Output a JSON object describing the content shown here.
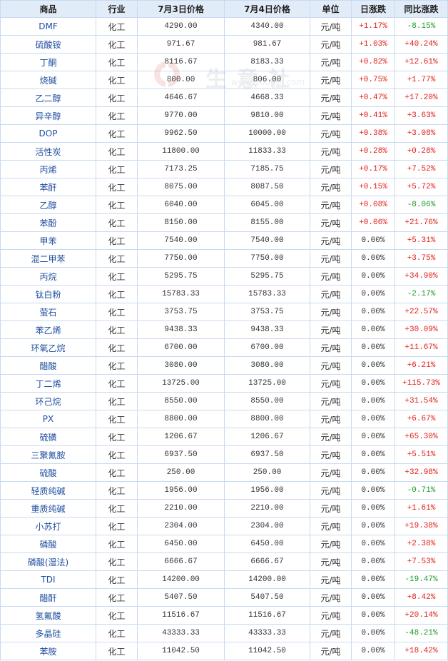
{
  "table": {
    "headers": {
      "name": "商品",
      "industry": "行业",
      "price1": "7月3日价格",
      "price2": "7月4日价格",
      "unit": "单位",
      "daily": "日涨跌",
      "yoy": "同比涨跌"
    },
    "rows": [
      {
        "name": "DMF",
        "industry": "化工",
        "price1": "4290.00",
        "price2": "4340.00",
        "unit": "元/吨",
        "daily": "+1.17%",
        "yoy": "-8.15%"
      },
      {
        "name": "硫酸铵",
        "industry": "化工",
        "price1": "971.67",
        "price2": "981.67",
        "unit": "元/吨",
        "daily": "+1.03%",
        "yoy": "+40.24%"
      },
      {
        "name": "丁酮",
        "industry": "化工",
        "price1": "8116.67",
        "price2": "8183.33",
        "unit": "元/吨",
        "daily": "+0.82%",
        "yoy": "+12.61%"
      },
      {
        "name": "烧碱",
        "industry": "化工",
        "price1": "800.00",
        "price2": "806.00",
        "unit": "元/吨",
        "daily": "+0.75%",
        "yoy": "+1.77%"
      },
      {
        "name": "乙二醇",
        "industry": "化工",
        "price1": "4646.67",
        "price2": "4668.33",
        "unit": "元/吨",
        "daily": "+0.47%",
        "yoy": "+17.20%"
      },
      {
        "name": "异辛醇",
        "industry": "化工",
        "price1": "9770.00",
        "price2": "9810.00",
        "unit": "元/吨",
        "daily": "+0.41%",
        "yoy": "+3.63%"
      },
      {
        "name": "DOP",
        "industry": "化工",
        "price1": "9962.50",
        "price2": "10000.00",
        "unit": "元/吨",
        "daily": "+0.38%",
        "yoy": "+3.08%"
      },
      {
        "name": "活性炭",
        "industry": "化工",
        "price1": "11800.00",
        "price2": "11833.33",
        "unit": "元/吨",
        "daily": "+0.28%",
        "yoy": "+0.28%"
      },
      {
        "name": "丙烯",
        "industry": "化工",
        "price1": "7173.25",
        "price2": "7185.75",
        "unit": "元/吨",
        "daily": "+0.17%",
        "yoy": "+7.52%"
      },
      {
        "name": "苯酐",
        "industry": "化工",
        "price1": "8075.00",
        "price2": "8087.50",
        "unit": "元/吨",
        "daily": "+0.15%",
        "yoy": "+5.72%"
      },
      {
        "name": "乙醇",
        "industry": "化工",
        "price1": "6040.00",
        "price2": "6045.00",
        "unit": "元/吨",
        "daily": "+0.08%",
        "yoy": "-8.06%"
      },
      {
        "name": "苯酚",
        "industry": "化工",
        "price1": "8150.00",
        "price2": "8155.00",
        "unit": "元/吨",
        "daily": "+0.06%",
        "yoy": "+21.76%"
      },
      {
        "name": "甲苯",
        "industry": "化工",
        "price1": "7540.00",
        "price2": "7540.00",
        "unit": "元/吨",
        "daily": "0.00%",
        "yoy": "+5.31%"
      },
      {
        "name": "混二甲苯",
        "industry": "化工",
        "price1": "7750.00",
        "price2": "7750.00",
        "unit": "元/吨",
        "daily": "0.00%",
        "yoy": "+3.75%"
      },
      {
        "name": "丙烷",
        "industry": "化工",
        "price1": "5295.75",
        "price2": "5295.75",
        "unit": "元/吨",
        "daily": "0.00%",
        "yoy": "+34.90%"
      },
      {
        "name": "钛白粉",
        "industry": "化工",
        "price1": "15783.33",
        "price2": "15783.33",
        "unit": "元/吨",
        "daily": "0.00%",
        "yoy": "-2.17%"
      },
      {
        "name": "萤石",
        "industry": "化工",
        "price1": "3753.75",
        "price2": "3753.75",
        "unit": "元/吨",
        "daily": "0.00%",
        "yoy": "+22.57%"
      },
      {
        "name": "苯乙烯",
        "industry": "化工",
        "price1": "9438.33",
        "price2": "9438.33",
        "unit": "元/吨",
        "daily": "0.00%",
        "yoy": "+30.09%"
      },
      {
        "name": "环氧乙烷",
        "industry": "化工",
        "price1": "6700.00",
        "price2": "6700.00",
        "unit": "元/吨",
        "daily": "0.00%",
        "yoy": "+11.67%"
      },
      {
        "name": "醋酸",
        "industry": "化工",
        "price1": "3080.00",
        "price2": "3080.00",
        "unit": "元/吨",
        "daily": "0.00%",
        "yoy": "+6.21%"
      },
      {
        "name": "丁二烯",
        "industry": "化工",
        "price1": "13725.00",
        "price2": "13725.00",
        "unit": "元/吨",
        "daily": "0.00%",
        "yoy": "+115.73%"
      },
      {
        "name": "环己烷",
        "industry": "化工",
        "price1": "8550.00",
        "price2": "8550.00",
        "unit": "元/吨",
        "daily": "0.00%",
        "yoy": "+31.54%"
      },
      {
        "name": "PX",
        "industry": "化工",
        "price1": "8800.00",
        "price2": "8800.00",
        "unit": "元/吨",
        "daily": "0.00%",
        "yoy": "+6.67%"
      },
      {
        "name": "硫磺",
        "industry": "化工",
        "price1": "1206.67",
        "price2": "1206.67",
        "unit": "元/吨",
        "daily": "0.00%",
        "yoy": "+65.30%"
      },
      {
        "name": "三聚氰胺",
        "industry": "化工",
        "price1": "6937.50",
        "price2": "6937.50",
        "unit": "元/吨",
        "daily": "0.00%",
        "yoy": "+5.51%"
      },
      {
        "name": "硫酸",
        "industry": "化工",
        "price1": "250.00",
        "price2": "250.00",
        "unit": "元/吨",
        "daily": "0.00%",
        "yoy": "+32.98%"
      },
      {
        "name": "轻质纯碱",
        "industry": "化工",
        "price1": "1956.00",
        "price2": "1956.00",
        "unit": "元/吨",
        "daily": "0.00%",
        "yoy": "-0.71%"
      },
      {
        "name": "重质纯碱",
        "industry": "化工",
        "price1": "2210.00",
        "price2": "2210.00",
        "unit": "元/吨",
        "daily": "0.00%",
        "yoy": "+1.61%"
      },
      {
        "name": "小苏打",
        "industry": "化工",
        "price1": "2304.00",
        "price2": "2304.00",
        "unit": "元/吨",
        "daily": "0.00%",
        "yoy": "+19.38%"
      },
      {
        "name": "磷酸",
        "industry": "化工",
        "price1": "6450.00",
        "price2": "6450.00",
        "unit": "元/吨",
        "daily": "0.00%",
        "yoy": "+2.38%"
      },
      {
        "name": "磷酸(湿法)",
        "industry": "化工",
        "price1": "6666.67",
        "price2": "6666.67",
        "unit": "元/吨",
        "daily": "0.00%",
        "yoy": "+7.53%"
      },
      {
        "name": "TDI",
        "industry": "化工",
        "price1": "14200.00",
        "price2": "14200.00",
        "unit": "元/吨",
        "daily": "0.00%",
        "yoy": "-19.47%"
      },
      {
        "name": "醋酐",
        "industry": "化工",
        "price1": "5407.50",
        "price2": "5407.50",
        "unit": "元/吨",
        "daily": "0.00%",
        "yoy": "+8.42%"
      },
      {
        "name": "氢氟酸",
        "industry": "化工",
        "price1": "11516.67",
        "price2": "11516.67",
        "unit": "元/吨",
        "daily": "0.00%",
        "yoy": "+20.14%"
      },
      {
        "name": "多晶硅",
        "industry": "化工",
        "price1": "43333.33",
        "price2": "43333.33",
        "unit": "元/吨",
        "daily": "0.00%",
        "yoy": "-48.21%"
      },
      {
        "name": "苯胺",
        "industry": "化工",
        "price1": "11042.50",
        "price2": "11042.50",
        "unit": "元/吨",
        "daily": "0.00%",
        "yoy": "+18.42%"
      }
    ]
  },
  "watermark": {
    "logo": "shengyishe-logo",
    "text": "生意社",
    "url": "www.100ppi.com"
  },
  "colors": {
    "up": "#e0201b",
    "down": "#1e9a2a",
    "header_bg": "#e2ecf8",
    "border": "#c9daf0",
    "name": "#1f4fa0"
  }
}
